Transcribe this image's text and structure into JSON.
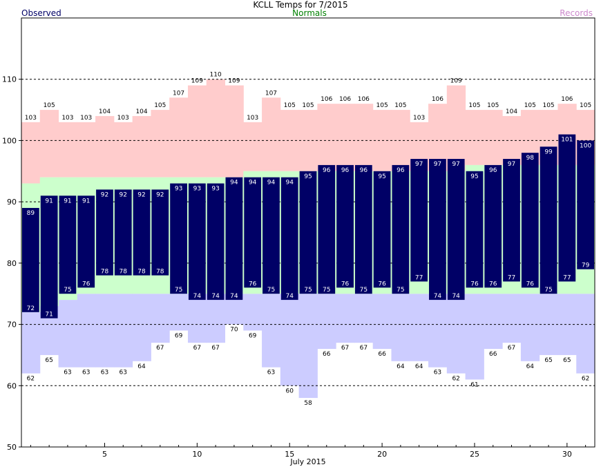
{
  "chart_data": {
    "type": "bar",
    "title": "KCLL Temps for 7/2015",
    "xlabel": "July 2015",
    "ylabel": "",
    "ylim": [
      50,
      120
    ],
    "yticks": [
      50,
      60,
      70,
      80,
      90,
      100,
      110
    ],
    "xticks": [
      5,
      10,
      15,
      20,
      25,
      30
    ],
    "grid": "dashed at 60, 70, 80, 90, 100, 110",
    "legend": {
      "observed": "Observed",
      "normals": "Normals",
      "records": "Records"
    },
    "colors": {
      "observed": "#000066",
      "normals": "#ccffcc",
      "record_high": "#ffcccc",
      "record_low": "#ccccff",
      "normals_text": "#008000",
      "records_text": "#cc88cc"
    },
    "days": [
      1,
      2,
      3,
      4,
      5,
      6,
      7,
      8,
      9,
      10,
      11,
      12,
      13,
      14,
      15,
      16,
      17,
      18,
      19,
      20,
      21,
      22,
      23,
      24,
      25,
      26,
      27,
      28,
      29,
      30,
      31
    ],
    "observed_high": [
      89,
      91,
      91,
      91,
      92,
      92,
      92,
      92,
      93,
      93,
      93,
      94,
      94,
      94,
      94,
      95,
      96,
      96,
      96,
      95,
      96,
      97,
      97,
      97,
      95,
      96,
      97,
      98,
      99,
      101,
      100
    ],
    "observed_low": [
      72,
      71,
      75,
      76,
      78,
      78,
      78,
      78,
      75,
      74,
      74,
      74,
      76,
      75,
      74,
      75,
      75,
      76,
      75,
      76,
      75,
      77,
      74,
      74,
      76,
      76,
      77,
      76,
      75,
      77,
      79
    ],
    "normal_high": [
      93,
      94,
      94,
      94,
      94,
      94,
      94,
      94,
      94,
      94,
      94,
      94,
      95,
      95,
      95,
      95,
      95,
      95,
      95,
      95,
      95,
      95,
      95,
      95,
      96,
      96,
      96,
      96,
      96,
      96,
      96
    ],
    "normal_low": [
      72,
      73,
      74,
      75,
      75,
      75,
      75,
      75,
      75,
      75,
      75,
      75,
      75,
      75,
      75,
      75,
      75,
      75,
      75,
      75,
      75,
      75,
      75,
      75,
      75,
      75,
      75,
      75,
      75,
      75,
      75
    ],
    "record_high": [
      103,
      105,
      103,
      103,
      104,
      103,
      104,
      105,
      107,
      109,
      110,
      109,
      103,
      107,
      105,
      105,
      106,
      106,
      106,
      105,
      105,
      103,
      106,
      109,
      105,
      105,
      104,
      105,
      105,
      106,
      105
    ],
    "record_low": [
      62,
      65,
      63,
      63,
      63,
      63,
      64,
      67,
      69,
      67,
      67,
      70,
      69,
      63,
      60,
      58,
      66,
      67,
      67,
      66,
      64,
      64,
      63,
      62,
      61,
      66,
      67,
      64,
      65,
      65,
      62
    ]
  }
}
